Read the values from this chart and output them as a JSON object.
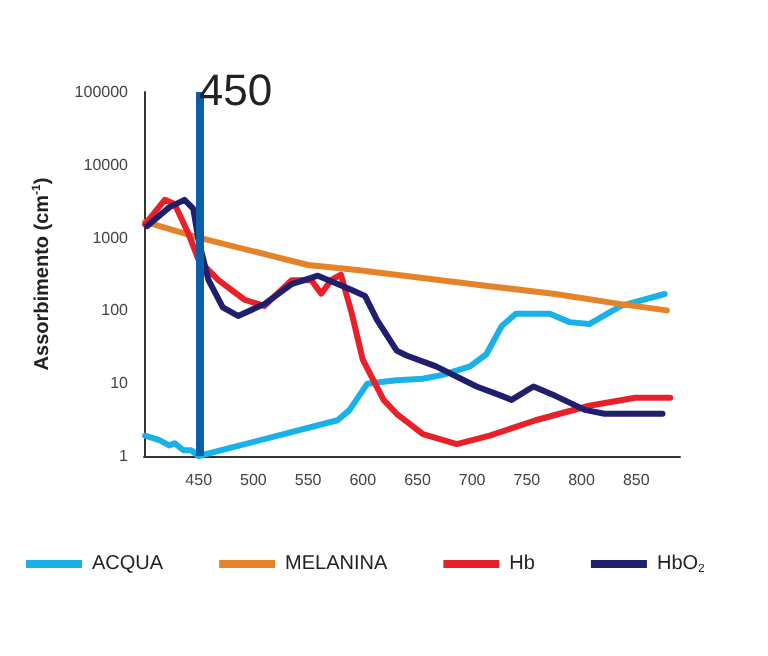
{
  "chart_data": {
    "type": "line",
    "ylabel": "Assorbimento (cm$^{-1}$)",
    "log": "y",
    "xlim": [
      400,
      890
    ],
    "xticks": [
      450,
      500,
      550,
      600,
      650,
      700,
      750,
      800,
      850
    ],
    "ylim": [
      1,
      100000
    ],
    "yticks": [
      1,
      10,
      100,
      1000,
      10000,
      100000
    ],
    "grid": false,
    "legend": "bottom",
    "marker": "none",
    "line_style": "solid",
    "ref_lines": [
      {
        "axis": "x",
        "value": 450,
        "label": "450",
        "color": "#0b5ea8"
      }
    ],
    "series": [
      {
        "name": "ACQUA",
        "color": "#1ab0e8",
        "x": [
          401,
          414,
          423,
          428,
          436,
          443,
          450,
          577,
          588,
          604,
          619,
          631,
          655,
          673,
          698,
          713,
          727,
          740,
          771,
          789,
          807,
          836,
          876
        ],
        "values": [
          1.9,
          1.65,
          1.4,
          1.5,
          1.2,
          1.2,
          1.0,
          3.1,
          4.3,
          9.8,
          10.5,
          11,
          11.5,
          13,
          17,
          25,
          61,
          90,
          90,
          69,
          65,
          115,
          168
        ]
      },
      {
        "name": "MELANINA",
        "color": "#e5832b",
        "x": [
          401,
          450,
          550,
          595,
          716,
          776,
          836,
          878
        ],
        "values": [
          1640,
          1000,
          420,
          360,
          215,
          168,
          122,
          100
        ]
      },
      {
        "name": "Hb",
        "color": "#e8202a",
        "x": [
          401,
          419,
          428,
          441,
          450,
          468,
          492,
          510,
          535,
          553,
          562,
          571,
          580,
          590,
          600,
          619,
          631,
          655,
          686,
          716,
          758,
          807,
          849,
          881
        ],
        "values": [
          1520,
          3300,
          2900,
          1100,
          490,
          260,
          140,
          115,
          260,
          260,
          170,
          260,
          310,
          90,
          21,
          5.9,
          3.8,
          2.0,
          1.46,
          1.9,
          3.1,
          4.9,
          6.3,
          6.3
        ]
      },
      {
        "name": "HbO$_{2}$",
        "color": "#1f1f6e",
        "x": [
          403,
          423,
          437,
          445,
          450,
          459,
          472,
          486,
          510,
          535,
          559,
          590,
          602,
          613,
          631,
          640,
          667,
          704,
          727,
          736,
          756,
          776,
          803,
          821,
          874
        ],
        "values": [
          1440,
          2600,
          3300,
          2500,
          900,
          260,
          110,
          84,
          122,
          230,
          300,
          190,
          158,
          74,
          28,
          24,
          17,
          9,
          6.7,
          5.9,
          9,
          6.7,
          4.3,
          3.8,
          3.8
        ]
      }
    ]
  }
}
